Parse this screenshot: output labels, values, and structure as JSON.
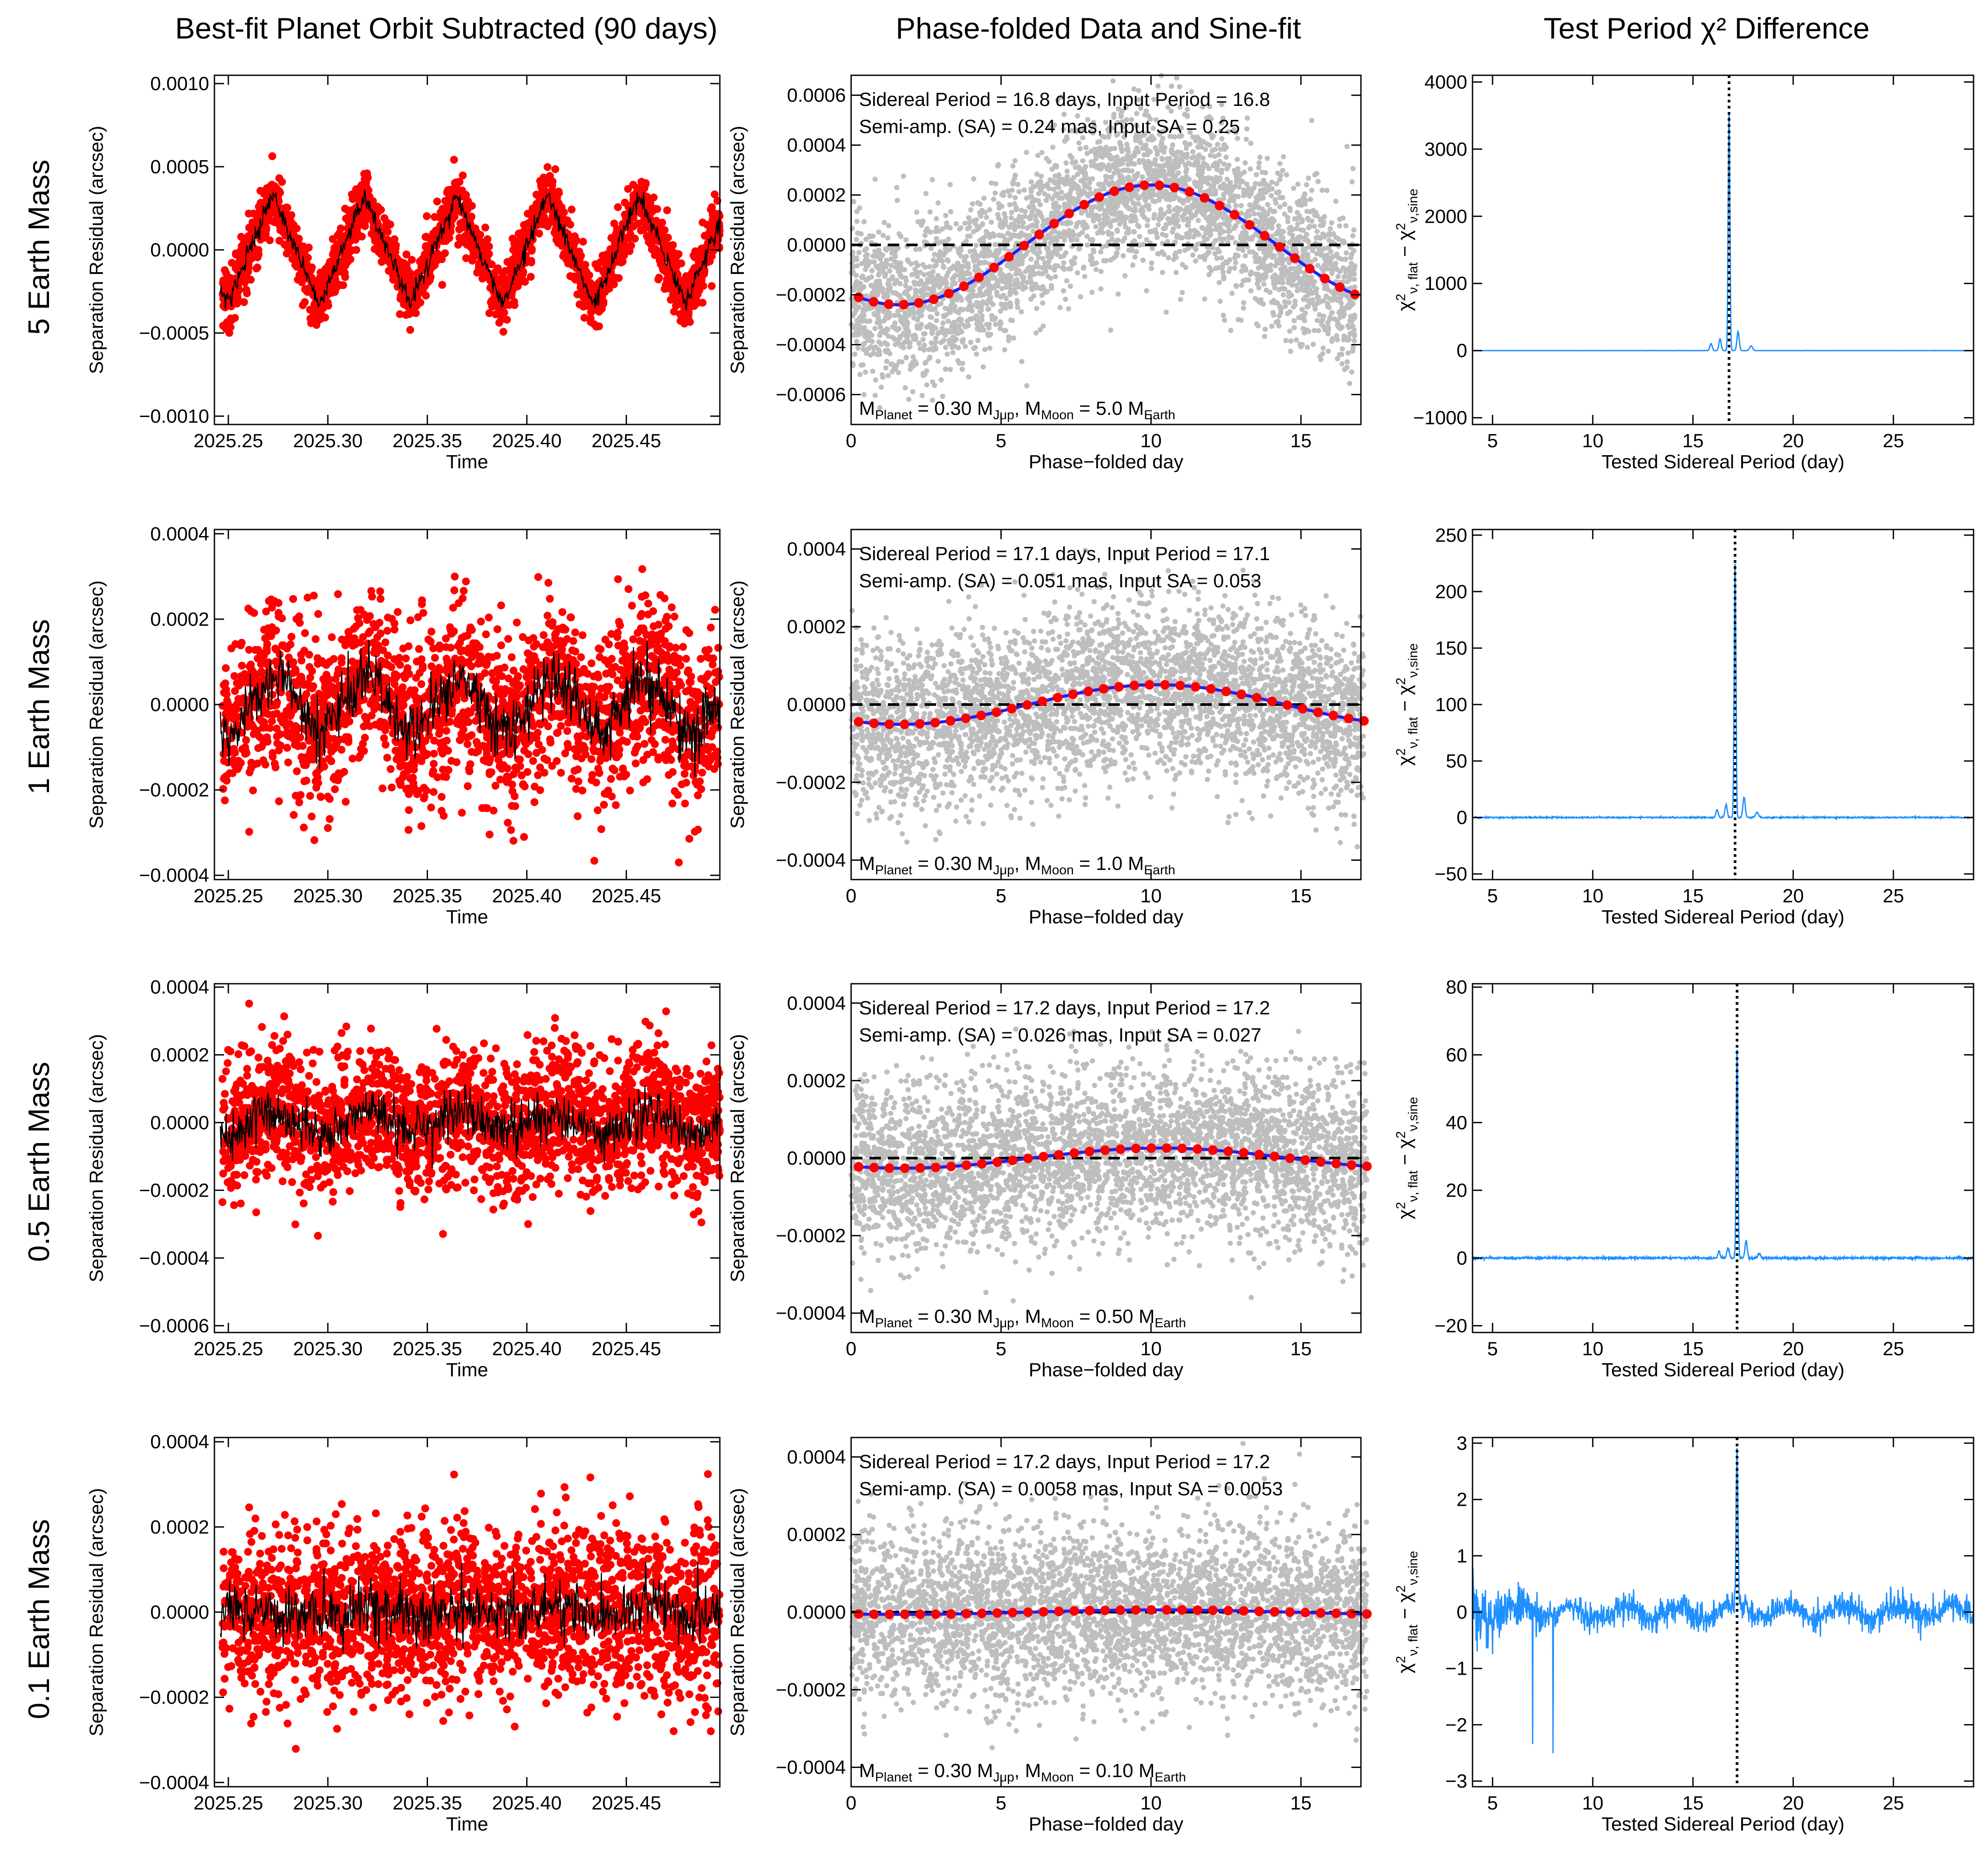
{
  "figure": {
    "column_titles": [
      "Best-fit Planet Orbit Subtracted (90 days)",
      "Phase-folded Data and Sine-fit",
      "Test Period χ² Difference"
    ],
    "row_titles": [
      "5 Earth Mass",
      "1 Earth Mass",
      "0.5 Earth Mass",
      "0.1 Earth Mass"
    ],
    "colors": {
      "data_points": "#ff0000",
      "model_line": "#000000",
      "phase_cloud": "#bebebe",
      "sine_fit": "#1f1fff",
      "binned_points": "#ff0000",
      "periodogram": "#1e90ff",
      "zero_line": "#000000"
    }
  },
  "chart_data": [
    {
      "type": "scatter",
      "panel": "residual-5",
      "xlabel": "Time",
      "ylabel": "Separation Residual (arcsec)",
      "xlim": [
        2025.243,
        2025.497
      ],
      "ylim": [
        -0.00105,
        0.00105
      ],
      "xticks": [
        "2025.25",
        "2025.30",
        "2025.35",
        "2025.40",
        "2025.45"
      ],
      "yticks": [
        "-0.0010",
        "-0.0005",
        "0.0000",
        "0.0005",
        "0.0010"
      ],
      "model": {
        "period_years": 0.046,
        "amplitude": 0.00033,
        "t0": 2025.2495,
        "shape": "triangle",
        "scatter": 9e-05
      }
    },
    {
      "type": "scatter",
      "panel": "phase-5",
      "xlabel": "Phase-folded day",
      "ylabel": "Separation Residual (arcsec)",
      "xlim": [
        0,
        17
      ],
      "ylim": [
        -0.00072,
        0.00068
      ],
      "xticks": [
        "0",
        "5",
        "10",
        "15"
      ],
      "yticks": [
        "-0.0006",
        "-0.0004",
        "-0.0002",
        "0.0000",
        "0.0002",
        "0.0004",
        "0.0006"
      ],
      "annotations": [
        "Sidereal Period = 16.8 days, Input Period = 16.8",
        "Semi-amp. (SA) = 0.24 mas, Input SA = 0.25"
      ],
      "mass_label": {
        "parts": [
          "M",
          "Planet",
          " = 0.30 M",
          "Jup",
          ", M",
          "Moon",
          " = 5.0 M",
          "Earth"
        ]
      },
      "sine": {
        "period": 16.8,
        "amplitude": 0.00024,
        "peak_day": 10.0,
        "cloud_sigma": 0.00016
      }
    },
    {
      "type": "line",
      "panel": "chi-5",
      "xlabel": "Tested Sidereal Period (day)",
      "xlim": [
        4,
        29
      ],
      "ylim": [
        -1100,
        4100
      ],
      "xticks": [
        "5",
        "10",
        "15",
        "20",
        "25"
      ],
      "yticks": [
        "-1000",
        "0",
        "1000",
        "2000",
        "3000",
        "4000"
      ],
      "marker_period": 16.8,
      "peak_value": 3550,
      "noise": 2
    },
    {
      "type": "scatter",
      "panel": "residual-1",
      "xlabel": "Time",
      "ylabel": "Separation Residual (arcsec)",
      "xlim": [
        2025.243,
        2025.497
      ],
      "ylim": [
        -0.00041,
        0.00041
      ],
      "xticks": [
        "2025.25",
        "2025.30",
        "2025.35",
        "2025.40",
        "2025.45"
      ],
      "yticks": [
        "-0.0004",
        "-0.0002",
        "0.0000",
        "0.0002",
        "0.0004"
      ],
      "model": {
        "period_years": 0.0468,
        "amplitude": 6e-05,
        "t0": 2025.2495,
        "shape": "sine",
        "scatter": 0.0001
      }
    },
    {
      "type": "scatter",
      "panel": "phase-1",
      "xlabel": "Phase-folded day",
      "ylabel": "Separation Residual (arcsec)",
      "xlim": [
        0,
        17
      ],
      "ylim": [
        -0.00045,
        0.00045
      ],
      "xticks": [
        "0",
        "5",
        "10",
        "15"
      ],
      "yticks": [
        "-0.0004",
        "-0.0002",
        "0.0000",
        "0.0002",
        "0.0004"
      ],
      "annotations": [
        "Sidereal Period = 17.1 days, Input Period = 17.1",
        "Semi-amp. (SA) = 0.051 mas, Input SA = 0.053"
      ],
      "mass_label": {
        "parts": [
          "M",
          "Planet",
          " = 0.30 M",
          "Jup",
          ", M",
          "Moon",
          " = 1.0 M",
          "Earth"
        ]
      },
      "sine": {
        "period": 17.1,
        "amplitude": 5.1e-05,
        "peak_day": 10.2,
        "cloud_sigma": 0.00011
      }
    },
    {
      "type": "line",
      "panel": "chi-1",
      "xlabel": "Tested Sidereal Period (day)",
      "xlim": [
        4,
        29
      ],
      "ylim": [
        -55,
        255
      ],
      "xticks": [
        "5",
        "10",
        "15",
        "20",
        "25"
      ],
      "yticks": [
        "-50",
        "0",
        "50",
        "100",
        "150",
        "200",
        "250"
      ],
      "marker_period": 17.1,
      "peak_value": 228,
      "noise": 0.6
    },
    {
      "type": "scatter",
      "panel": "residual-05",
      "xlabel": "Time",
      "ylabel": "Separation Residual (arcsec)",
      "xlim": [
        2025.243,
        2025.497
      ],
      "ylim": [
        -0.00062,
        0.00041
      ],
      "xticks": [
        "2025.25",
        "2025.30",
        "2025.35",
        "2025.40",
        "2025.45"
      ],
      "yticks": [
        "-0.0006",
        "-0.0004",
        "-0.0002",
        "0.0000",
        "0.0002",
        "0.0004"
      ],
      "model": {
        "period_years": 0.0471,
        "amplitude": 3.5e-05,
        "t0": 2025.2495,
        "shape": "sine",
        "scatter": 0.0001
      }
    },
    {
      "type": "scatter",
      "panel": "phase-05",
      "xlabel": "Phase-folded day",
      "ylabel": "Separation Residual (arcsec)",
      "xlim": [
        0,
        17
      ],
      "ylim": [
        -0.00045,
        0.00045
      ],
      "xticks": [
        "0",
        "5",
        "10",
        "15"
      ],
      "yticks": [
        "-0.0004",
        "-0.0002",
        "0.0000",
        "0.0002",
        "0.0004"
      ],
      "annotations": [
        "Sidereal Period = 17.2 days, Input Period = 17.2",
        "Semi-amp. (SA) = 0.026 mas, Input SA = 0.027"
      ],
      "mass_label": {
        "parts": [
          "M",
          "Planet",
          " = 0.30 M",
          "Jup",
          ", M",
          "Moon",
          " = 0.50 M",
          "Earth"
        ]
      },
      "sine": {
        "period": 17.2,
        "amplitude": 2.6e-05,
        "peak_day": 10.3,
        "cloud_sigma": 0.00011
      }
    },
    {
      "type": "line",
      "panel": "chi-05",
      "xlabel": "Tested Sidereal Period (day)",
      "xlim": [
        4,
        29
      ],
      "ylim": [
        -22,
        81
      ],
      "xticks": [
        "5",
        "10",
        "15",
        "20",
        "25"
      ],
      "yticks": [
        "-20",
        "0",
        "20",
        "40",
        "60",
        "80"
      ],
      "marker_period": 17.2,
      "peak_value": 62,
      "noise": 0.35
    },
    {
      "type": "scatter",
      "panel": "residual-01",
      "xlabel": "Time",
      "ylabel": "Separation Residual (arcsec)",
      "xlim": [
        2025.243,
        2025.497
      ],
      "ylim": [
        -0.00041,
        0.00041
      ],
      "xticks": [
        "2025.25",
        "2025.30",
        "2025.35",
        "2025.40",
        "2025.45"
      ],
      "yticks": [
        "-0.0004",
        "-0.0002",
        "0.0000",
        "0.0002",
        "0.0004"
      ],
      "model": {
        "period_years": 0.0471,
        "amplitude": 8e-06,
        "t0": 2025.2495,
        "shape": "sine",
        "scatter": 0.0001
      }
    },
    {
      "type": "scatter",
      "panel": "phase-01",
      "xlabel": "Phase-folded day",
      "ylabel": "Separation Residual (arcsec)",
      "xlim": [
        0,
        17
      ],
      "ylim": [
        -0.00045,
        0.00045
      ],
      "xticks": [
        "0",
        "5",
        "10",
        "15"
      ],
      "yticks": [
        "-0.0004",
        "-0.0002",
        "0.0000",
        "0.0002",
        "0.0004"
      ],
      "annotations": [
        "Sidereal Period = 17.2 days, Input Period = 17.2",
        "Semi-amp. (SA) = 0.0058 mas, Input SA = 0.0053"
      ],
      "mass_label": {
        "parts": [
          "M",
          "Planet",
          " = 0.30 M",
          "Jup",
          ", M",
          "Moon",
          " = 0.10 M",
          "Earth"
        ]
      },
      "sine": {
        "period": 17.2,
        "amplitude": 5.8e-06,
        "peak_day": 10.3,
        "cloud_sigma": 0.00011
      }
    },
    {
      "type": "line",
      "panel": "chi-01",
      "xlabel": "Tested Sidereal Period (day)",
      "xlim": [
        4,
        29
      ],
      "ylim": [
        -3.1,
        3.1
      ],
      "xticks": [
        "5",
        "10",
        "15",
        "20",
        "25"
      ],
      "yticks": [
        "-3",
        "-2",
        "-1",
        "0",
        "1",
        "2",
        "3"
      ],
      "marker_period": 17.2,
      "peak_value": 2.85,
      "noise": 0.25,
      "low_period_noise": 0.6
    }
  ]
}
